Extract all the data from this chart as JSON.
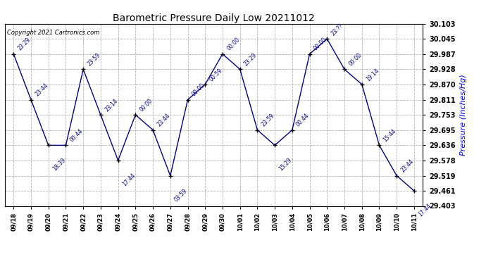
{
  "title": "Barometric Pressure Daily Low 20211012",
  "ylabel": "Pressure (Inches/Hg)",
  "copyright": "Copyright 2021 Cartronics.com",
  "line_color": "#00008B",
  "marker_color": "black",
  "title_color": "black",
  "ylabel_color": "#0000FF",
  "copyright_color": "black",
  "background_color": "#ffffff",
  "grid_color": "#aaaaaa",
  "ylim": [
    29.403,
    30.103
  ],
  "yticks": [
    29.403,
    29.461,
    29.519,
    29.578,
    29.636,
    29.695,
    29.753,
    29.811,
    29.87,
    29.928,
    29.987,
    30.045,
    30.103
  ],
  "x_labels": [
    "09/18",
    "09/19",
    "09/20",
    "09/21",
    "09/22",
    "09/23",
    "09/24",
    "09/25",
    "09/26",
    "09/27",
    "09/28",
    "09/29",
    "09/30",
    "10/01",
    "10/02",
    "10/03",
    "10/04",
    "10/05",
    "10/06",
    "10/07",
    "10/08",
    "10/09",
    "10/10",
    "10/11"
  ],
  "y_values": [
    29.987,
    29.811,
    29.636,
    29.636,
    29.928,
    29.753,
    29.578,
    29.753,
    29.695,
    29.519,
    29.811,
    29.87,
    29.987,
    29.928,
    29.695,
    29.636,
    29.695,
    29.987,
    30.045,
    29.928,
    29.87,
    29.636,
    29.519,
    29.461
  ],
  "point_labels": [
    "23:29",
    "23:44",
    "18:39",
    "00:44",
    "23:59",
    "23:14",
    "17:44",
    "00:00",
    "23:44",
    "03:59",
    "00:00",
    "00:59",
    "00:00",
    "23:29",
    "23:59",
    "15:29",
    "00:44",
    "00:00",
    "23:??",
    "00:00",
    "19:14",
    "15:44",
    "23:44",
    "17:44"
  ],
  "label_above": [
    true,
    true,
    false,
    true,
    true,
    true,
    false,
    true,
    true,
    false,
    true,
    true,
    true,
    true,
    true,
    false,
    true,
    true,
    true,
    true,
    true,
    true,
    true,
    false
  ]
}
